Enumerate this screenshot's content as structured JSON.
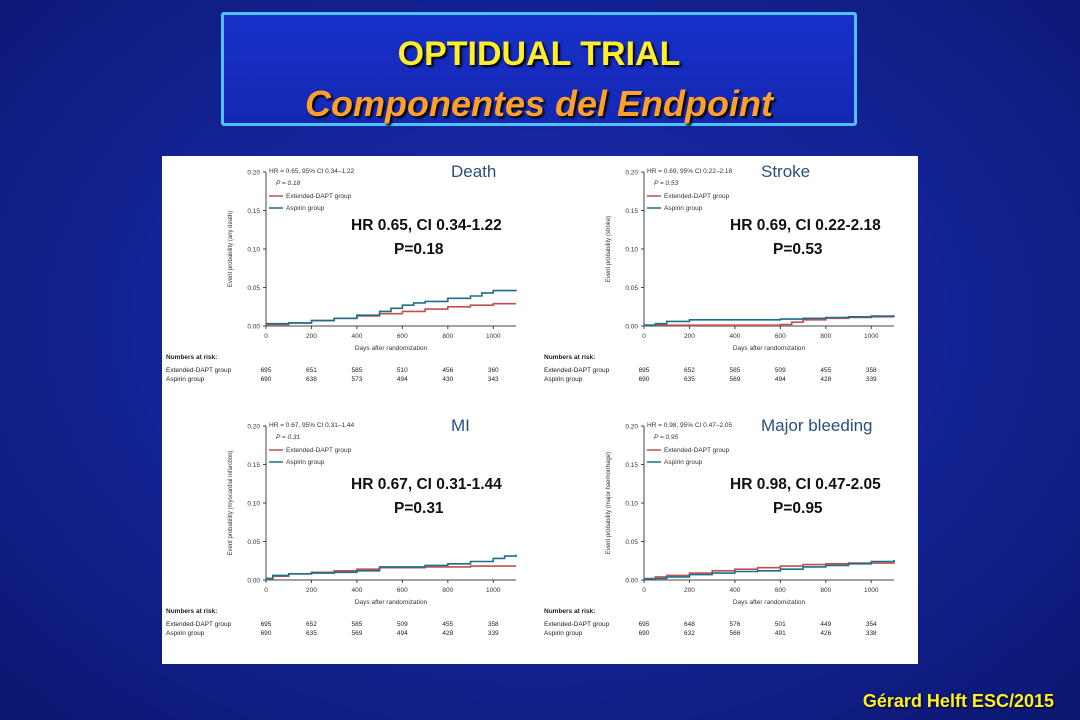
{
  "header": {
    "title": "OPTIDUAL TRIAL",
    "subtitle": "Componentes del Endpoint"
  },
  "footer": {
    "credit": "Gérard Helft ESC/2015"
  },
  "colors": {
    "background": "#14249a",
    "title_border": "#4ec3f5",
    "title_text": "#ffef2a",
    "subtitle_text": "#ffa02a",
    "extended_dapt": "#c0504d",
    "aspirin": "#1f6e8c"
  },
  "chart_data": [
    {
      "type": "line",
      "panel_title": "Death",
      "hr_text": "HR = 0.65, 95% CI 0.34–1.22",
      "p_text": "P = 0.18",
      "big_hr": "HR 0.65, CI 0.34-1.22",
      "big_p": "P=0.18",
      "ylabel": "Event probability (any death)",
      "xlabel": "Days after randomization",
      "xlim": [
        0,
        1100
      ],
      "ylim": [
        0,
        0.2
      ],
      "xticks": [
        "0",
        "200",
        "400",
        "600",
        "800",
        "1000"
      ],
      "yticks": [
        "0.00",
        "0.05",
        "0.10",
        "0.15",
        "0.20"
      ],
      "series": [
        {
          "name": "Extended-DAPT group",
          "x": [
            0,
            100,
            200,
            300,
            400,
            500,
            600,
            700,
            800,
            900,
            1000,
            1100
          ],
          "y": [
            0.002,
            0.004,
            0.007,
            0.01,
            0.013,
            0.016,
            0.019,
            0.022,
            0.025,
            0.027,
            0.029,
            0.029
          ]
        },
        {
          "name": "Aspirin group",
          "x": [
            0,
            100,
            200,
            300,
            400,
            500,
            550,
            600,
            650,
            700,
            800,
            900,
            950,
            1000,
            1100
          ],
          "y": [
            0.003,
            0.004,
            0.007,
            0.01,
            0.014,
            0.019,
            0.023,
            0.027,
            0.03,
            0.032,
            0.036,
            0.039,
            0.043,
            0.046,
            0.047
          ]
        }
      ],
      "risk_header": "Numbers at risk:",
      "risk": [
        {
          "name": "Extended-DAPT group",
          "values": [
            "695",
            "651",
            "585",
            "510",
            "456",
            "360"
          ]
        },
        {
          "name": "Aspirin group",
          "values": [
            "690",
            "638",
            "573",
            "494",
            "430",
            "343"
          ]
        }
      ]
    },
    {
      "type": "line",
      "panel_title": "Stroke",
      "hr_text": "HR = 0.69, 95% CI 0.22–2.18",
      "p_text": "P = 0.53",
      "big_hr": "HR 0.69, CI 0.22-2.18",
      "big_p": "P=0.53",
      "ylabel": "Event probability (stroke)",
      "xlabel": "Days after randomization",
      "xlim": [
        0,
        1100
      ],
      "ylim": [
        0,
        0.2
      ],
      "xticks": [
        "0",
        "200",
        "400",
        "600",
        "800",
        "1000"
      ],
      "yticks": [
        "0.00",
        "0.05",
        "0.10",
        "0.15",
        "0.20"
      ],
      "series": [
        {
          "name": "Extended-DAPT group",
          "x": [
            0,
            300,
            600,
            650,
            700,
            800,
            900,
            1000,
            1100
          ],
          "y": [
            0.001,
            0.001,
            0.002,
            0.005,
            0.008,
            0.01,
            0.011,
            0.012,
            0.012
          ]
        },
        {
          "name": "Aspirin group",
          "x": [
            0,
            50,
            100,
            200,
            600,
            700,
            800,
            900,
            1000,
            1100
          ],
          "y": [
            0.001,
            0.003,
            0.006,
            0.008,
            0.009,
            0.01,
            0.011,
            0.012,
            0.013,
            0.014
          ]
        }
      ],
      "risk_header": "Numbers at risk:",
      "risk": [
        {
          "name": "Extended-DAPT group",
          "values": [
            "695",
            "652",
            "585",
            "509",
            "455",
            "358"
          ]
        },
        {
          "name": "Aspirin group",
          "values": [
            "690",
            "635",
            "569",
            "494",
            "428",
            "339"
          ]
        }
      ]
    },
    {
      "type": "line",
      "panel_title": "MI",
      "hr_text": "HR = 0.67, 95% CI 0.31–1.44",
      "p_text": "P = 0.31",
      "big_hr": "HR 0.67, CI 0.31-1.44",
      "big_p": "P=0.31",
      "ylabel": "Event probability (myocardial infarction)",
      "xlabel": "Days after randomization",
      "xlim": [
        0,
        1100
      ],
      "ylim": [
        0,
        0.2
      ],
      "xticks": [
        "0",
        "200",
        "400",
        "600",
        "800",
        "1000"
      ],
      "yticks": [
        "0.00",
        "0.05",
        "0.10",
        "0.15",
        "0.20"
      ],
      "series": [
        {
          "name": "Extended-DAPT group",
          "x": [
            0,
            30,
            100,
            200,
            300,
            400,
            500,
            700,
            900,
            1100
          ],
          "y": [
            0.002,
            0.005,
            0.008,
            0.01,
            0.012,
            0.014,
            0.016,
            0.017,
            0.018,
            0.018
          ]
        },
        {
          "name": "Aspirin group",
          "x": [
            0,
            30,
            100,
            200,
            300,
            400,
            500,
            700,
            800,
            900,
            1000,
            1050,
            1100
          ],
          "y": [
            0.002,
            0.006,
            0.008,
            0.009,
            0.01,
            0.012,
            0.017,
            0.019,
            0.021,
            0.024,
            0.028,
            0.031,
            0.033
          ]
        }
      ],
      "risk_header": "Numbers at risk:",
      "risk": [
        {
          "name": "Extended-DAPT group",
          "values": [
            "695",
            "652",
            "585",
            "509",
            "455",
            "358"
          ]
        },
        {
          "name": "Aspirin group",
          "values": [
            "690",
            "635",
            "569",
            "494",
            "428",
            "339"
          ]
        }
      ]
    },
    {
      "type": "line",
      "panel_title": "Major bleeding",
      "hr_text": "HR = 0.98, 95% CI 0.47–2.05",
      "p_text": "P = 0.95",
      "big_hr": "HR 0.98, CI 0.47-2.05",
      "big_p": "P=0.95",
      "ylabel": "Event probability (major haemorrhage)",
      "xlabel": "Days after randomization",
      "xlim": [
        0,
        1100
      ],
      "ylim": [
        0,
        0.2
      ],
      "xticks": [
        "0",
        "200",
        "400",
        "600",
        "800",
        "1000"
      ],
      "yticks": [
        "0.00",
        "0.05",
        "0.10",
        "0.15",
        "0.20"
      ],
      "series": [
        {
          "name": "Extended-DAPT group",
          "x": [
            0,
            50,
            100,
            200,
            300,
            400,
            500,
            600,
            700,
            800,
            900,
            1000,
            1100
          ],
          "y": [
            0.002,
            0.004,
            0.006,
            0.009,
            0.012,
            0.014,
            0.016,
            0.018,
            0.02,
            0.021,
            0.022,
            0.022,
            0.023
          ]
        },
        {
          "name": "Aspirin group",
          "x": [
            0,
            50,
            100,
            200,
            300,
            400,
            500,
            600,
            700,
            800,
            900,
            1000,
            1100
          ],
          "y": [
            0.001,
            0.002,
            0.004,
            0.007,
            0.009,
            0.011,
            0.012,
            0.014,
            0.017,
            0.019,
            0.021,
            0.024,
            0.026
          ]
        }
      ],
      "risk_header": "Numbers at risk:",
      "risk": [
        {
          "name": "Extended-DAPT group",
          "values": [
            "695",
            "648",
            "576",
            "501",
            "449",
            "354"
          ]
        },
        {
          "name": "Aspirin group",
          "values": [
            "690",
            "632",
            "566",
            "491",
            "426",
            "338"
          ]
        }
      ]
    }
  ]
}
